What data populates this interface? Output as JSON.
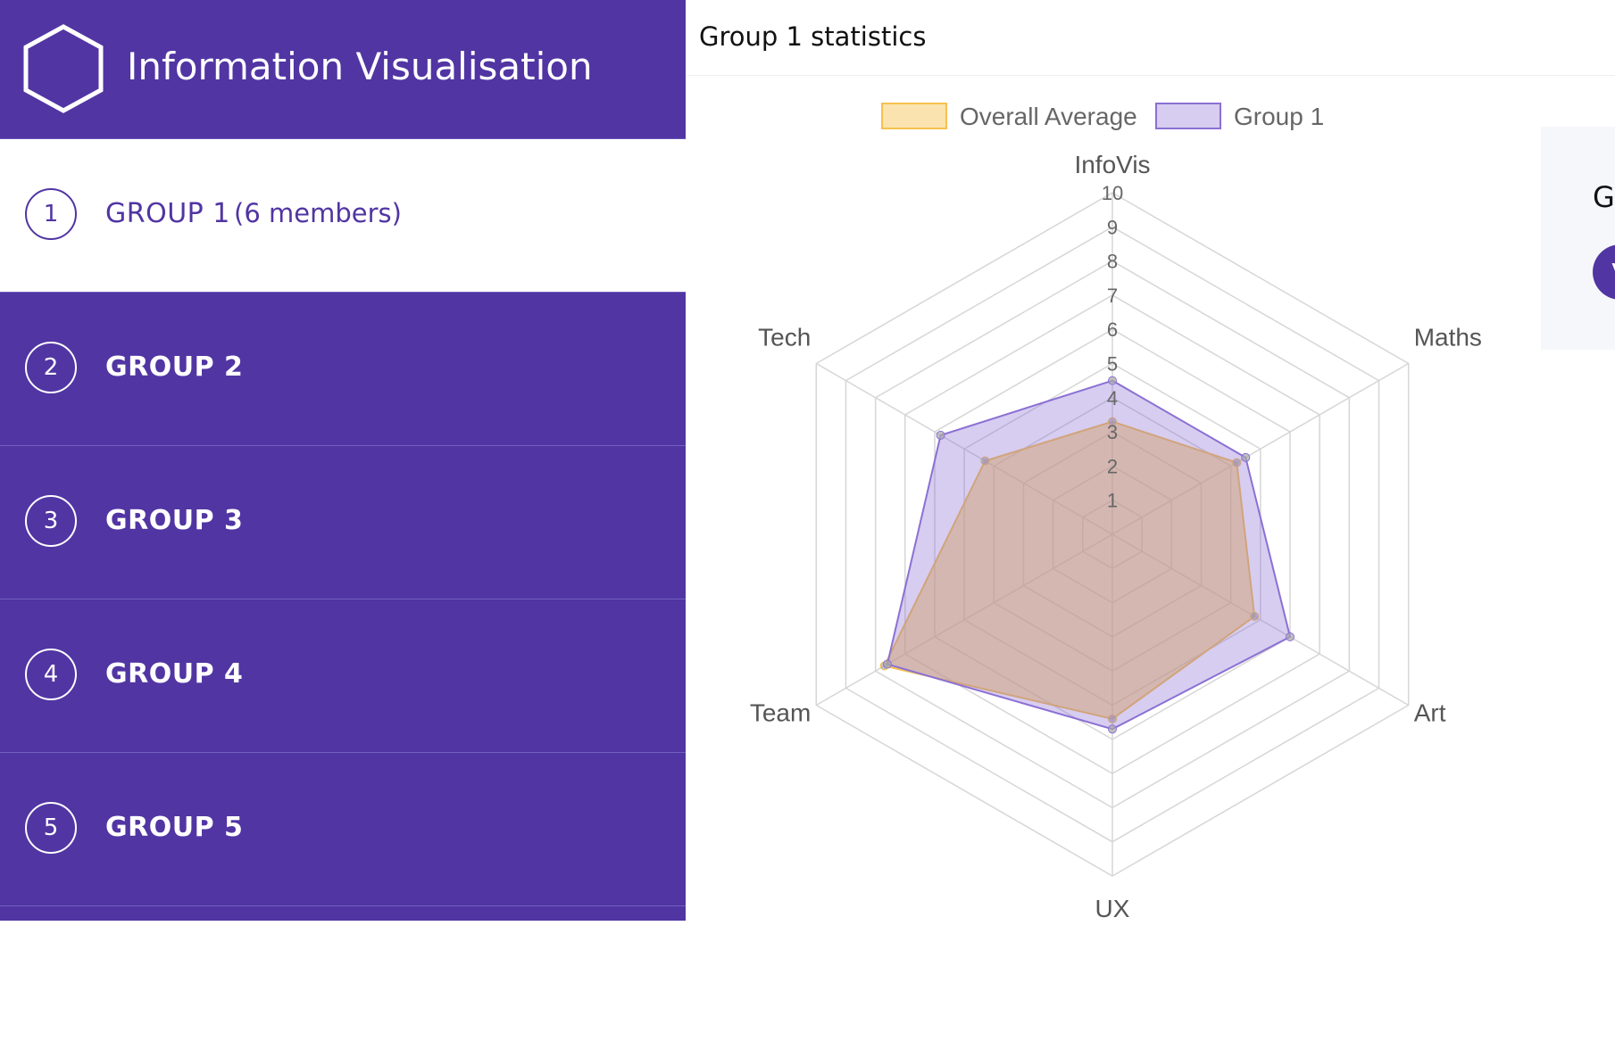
{
  "app": {
    "title": "Information Visualisation"
  },
  "colors": {
    "brand": "#5135a3",
    "average": "#f6c14e",
    "group": "#8b70d4"
  },
  "sidebar": {
    "groups": [
      {
        "number": "1",
        "label": "GROUP 1",
        "members": "(6 members)",
        "active": true
      },
      {
        "number": "2",
        "label": "GROUP 2"
      },
      {
        "number": "3",
        "label": "GROUP 3"
      },
      {
        "number": "4",
        "label": "GROUP 4"
      },
      {
        "number": "5",
        "label": "GROUP 5"
      }
    ]
  },
  "main": {
    "title": "Group 1 statistics"
  },
  "side_card": {
    "heading": "G",
    "avatar": "V"
  },
  "chart_data": {
    "type": "radar",
    "axes": [
      "InfoVis",
      "Maths",
      "Art",
      "UX",
      "Team",
      "Tech"
    ],
    "rlim": [
      0,
      10
    ],
    "ticks": [
      1,
      2,
      3,
      4,
      5,
      6,
      7,
      8,
      9,
      10
    ],
    "legend_position": "top",
    "series": [
      {
        "name": "Overall Average",
        "values": [
          3.3,
          4.2,
          4.8,
          5.4,
          7.7,
          4.3
        ],
        "color": "#f6c14e"
      },
      {
        "name": "Group 1",
        "values": [
          4.5,
          4.5,
          6.0,
          5.7,
          7.6,
          5.8
        ],
        "color": "#8b70d4"
      }
    ]
  }
}
